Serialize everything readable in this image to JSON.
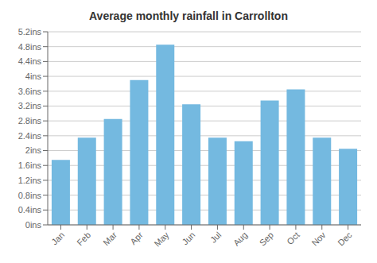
{
  "chart_data": {
    "type": "bar",
    "title": "Average monthly rainfall in Carrollton",
    "categories": [
      "Jan",
      "Feb",
      "Mar",
      "Apr",
      "May",
      "Jun",
      "Jul",
      "Aug",
      "Sep",
      "Oct",
      "Nov",
      "Dec"
    ],
    "values": [
      1.75,
      2.35,
      2.85,
      3.9,
      4.85,
      3.25,
      2.35,
      2.25,
      3.35,
      3.65,
      2.35,
      2.05
    ],
    "color": "#74b9e0",
    "ylim": [
      0,
      5.2
    ],
    "yticks": [
      {
        "value": 0,
        "label": "0ins"
      },
      {
        "value": 0.4,
        "label": "0.4ins"
      },
      {
        "value": 0.8,
        "label": "0.8ins"
      },
      {
        "value": 1.2,
        "label": "1.2ins"
      },
      {
        "value": 1.6,
        "label": "1.6ins"
      },
      {
        "value": 2.0,
        "label": "2ins"
      },
      {
        "value": 2.4,
        "label": "2.4ins"
      },
      {
        "value": 2.8,
        "label": "2.8ins"
      },
      {
        "value": 3.2,
        "label": "3.2ins"
      },
      {
        "value": 3.6,
        "label": "3.6ins"
      },
      {
        "value": 4.0,
        "label": "4ins"
      },
      {
        "value": 4.4,
        "label": "4.4ins"
      },
      {
        "value": 4.8,
        "label": "4.8ins"
      },
      {
        "value": 5.2,
        "label": "5.2ins"
      }
    ],
    "grid": true
  }
}
